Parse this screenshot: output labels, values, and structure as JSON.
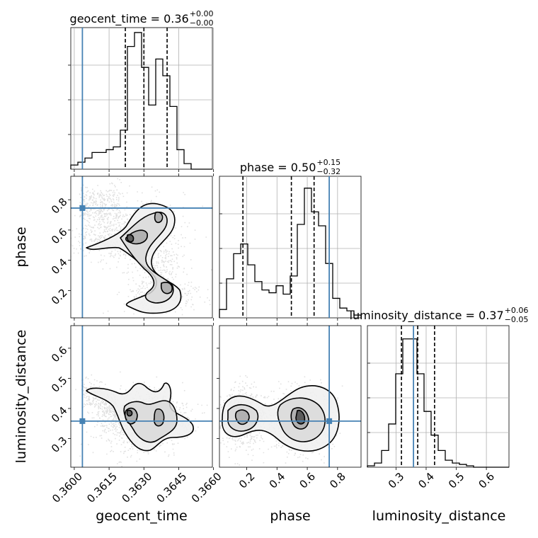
{
  "chart_data": {
    "type": "corner",
    "parameters": [
      "geocent_time",
      "phase",
      "luminosity_distance"
    ],
    "truth": {
      "color": "#4682b4",
      "geocent_time": 0.36035,
      "phase": 0.745,
      "luminosity_distance": 0.358
    },
    "titles": [
      {
        "param": "geocent_time",
        "label": "geocent_time = 0.36",
        "sup": "+0.00",
        "sub": "−0.00"
      },
      {
        "param": "phase",
        "label": "phase = 0.50",
        "sup": "+0.15",
        "sub": "−0.32"
      },
      {
        "param": "luminosity_distance",
        "label": "luminosity_distance = 0.37",
        "sup": "+0.06",
        "sub": "−0.05"
      }
    ],
    "ranges": {
      "geocent_time": [
        0.35985,
        0.36595
      ],
      "phase": [
        0.02,
        0.955
      ],
      "luminosity_distance": [
        0.205,
        0.675
      ]
    },
    "ticks": {
      "geocent_time": {
        "values": [
          0.36,
          0.3615,
          0.363,
          0.3645,
          0.366
        ],
        "labels": [
          "0.3600",
          "0.3615",
          "0.3630",
          "0.3645",
          "0.3660"
        ]
      },
      "phase": {
        "values": [
          0.2,
          0.4,
          0.6,
          0.8
        ],
        "labels": [
          "0.2",
          "0.4",
          "0.6",
          "0.8"
        ]
      },
      "luminosity_distance": {
        "values": [
          0.3,
          0.4,
          0.5,
          0.6
        ],
        "labels": [
          "0.3",
          "0.4",
          "0.5",
          "0.6"
        ]
      }
    },
    "quantiles": {
      "geocent_time": [
        0.3622,
        0.363,
        0.364
      ],
      "phase": [
        0.175,
        0.495,
        0.645
      ],
      "luminosity_distance": [
        0.318,
        0.372,
        0.428
      ]
    },
    "histograms": {
      "geocent_time": [
        0.03,
        0.05,
        0.08,
        0.12,
        0.12,
        0.14,
        0.16,
        0.28,
        0.88,
        0.98,
        0.73,
        0.46,
        0.79,
        0.67,
        0.45,
        0.14,
        0.04,
        0,
        0,
        0
      ],
      "phase": [
        0.06,
        0.28,
        0.46,
        0.53,
        0.38,
        0.26,
        0.2,
        0.18,
        0.23,
        0.17,
        0.3,
        0.67,
        0.93,
        0.76,
        0.66,
        0.39,
        0.14,
        0.07,
        0.05,
        0.02
      ],
      "luminosity_distance": [
        0.01,
        0.03,
        0.12,
        0.31,
        0.67,
        0.92,
        0.92,
        0.67,
        0.4,
        0.23,
        0.12,
        0.05,
        0.03,
        0.02,
        0.01,
        0,
        0,
        0,
        0,
        0
      ]
    },
    "grid": true,
    "legend": "none"
  }
}
